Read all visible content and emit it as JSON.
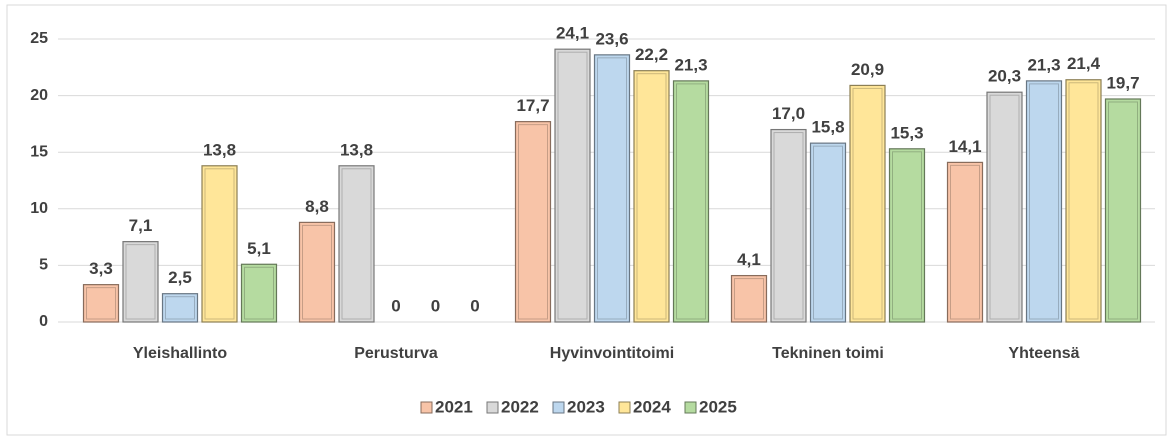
{
  "chart_data": {
    "type": "bar",
    "categories": [
      "Yleishallinto",
      "Perusturva",
      "Hyvinvointitoimi",
      "Tekninen toimi",
      "Yhteensä"
    ],
    "series": [
      {
        "name": "2021",
        "color": "#f8c4a8",
        "values": [
          3.3,
          8.8,
          17.7,
          4.1,
          14.1
        ],
        "value_labels": [
          "3,3",
          "8,8",
          "17,7",
          "4,1",
          "14,1"
        ]
      },
      {
        "name": "2022",
        "color": "#d9d9d9",
        "values": [
          7.1,
          13.8,
          24.1,
          17.0,
          20.3
        ],
        "value_labels": [
          "7,1",
          "13,8",
          "24,1",
          "17,0",
          "20,3"
        ]
      },
      {
        "name": "2023",
        "color": "#bdd7ee",
        "values": [
          2.5,
          0,
          23.6,
          15.8,
          21.3
        ],
        "value_labels": [
          "2,5",
          "0",
          "23,6",
          "15,8",
          "21,3"
        ]
      },
      {
        "name": "2024",
        "color": "#ffe699",
        "values": [
          13.8,
          0,
          22.2,
          20.9,
          21.4
        ],
        "value_labels": [
          "13,8",
          "0",
          "22,2",
          "20,9",
          "21,4"
        ]
      },
      {
        "name": "2025",
        "color": "#b5dba0",
        "values": [
          5.1,
          0,
          21.3,
          15.3,
          19.7
        ],
        "value_labels": [
          "5,1",
          "0",
          "21,3",
          "15,3",
          "19,7"
        ]
      }
    ],
    "ylim": [
      0,
      25
    ],
    "yticks": [
      0,
      5,
      10,
      15,
      20,
      25
    ],
    "grid": true,
    "legend": "bottom"
  }
}
